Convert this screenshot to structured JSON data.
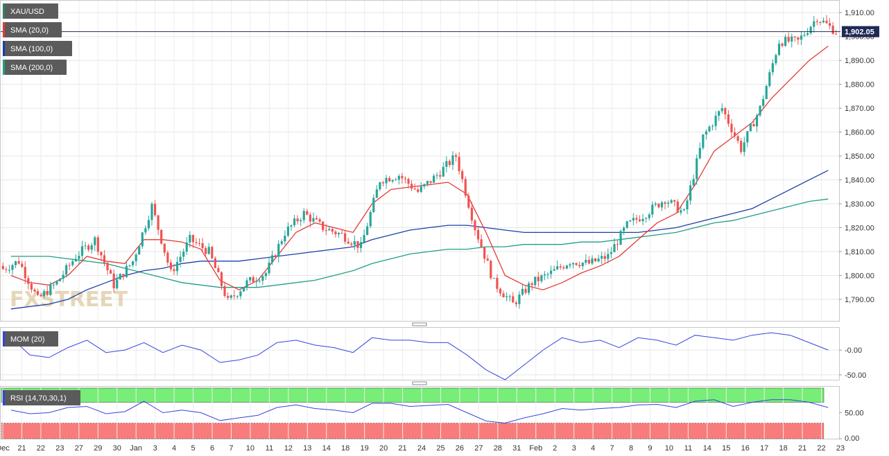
{
  "symbol": "XAU/USD",
  "watermark": "FXSTREET",
  "indicators": [
    {
      "label": "SMA (20,0)",
      "color": "#e53935"
    },
    {
      "label": "SMA (100,0)",
      "color": "#1a3fa8"
    },
    {
      "label": "SMA (200,0)",
      "color": "#1e9e86"
    }
  ],
  "colors": {
    "up": "#26a69a",
    "down": "#ef5350",
    "momentum": "#3344dd",
    "rsi": "#3344dd",
    "rsi_overbought_zone": "#77ee77",
    "rsi_oversold_zone": "#f97c7c",
    "last_price_line": "#1f2a55"
  },
  "last_price": "1,902.05",
  "chart_data": [
    {
      "type": "candlestick",
      "title": "XAU/USD",
      "y_ticks": [
        "1,790.00",
        "1,800.00",
        "1,810.00",
        "1,820.00",
        "1,830.00",
        "1,840.00",
        "1,850.00",
        "1,860.00",
        "1,870.00",
        "1,880.00",
        "1,890.00",
        "1,900.00",
        "1,910.00"
      ],
      "ylim": [
        1781,
        1915
      ],
      "x_ticks": [
        "Dec",
        "21",
        "22",
        "23",
        "27",
        "29",
        "30",
        "Jan",
        "3",
        "4",
        "5",
        "6",
        "7",
        "10",
        "11",
        "12",
        "13",
        "14",
        "18",
        "19",
        "20",
        "21",
        "24",
        "25",
        "26",
        "27",
        "28",
        "31",
        "Feb",
        "2",
        "3",
        "4",
        "7",
        "8",
        "9",
        "10",
        "11",
        "14",
        "15",
        "16",
        "17",
        "18",
        "21",
        "22",
        "23"
      ],
      "last_price": 1902.05,
      "ohlc_anchors_day_close": [
        {
          "day": "Dec",
          "close": 1806
        },
        {
          "day": "21",
          "close": 1790
        },
        {
          "day": "22",
          "close": 1797
        },
        {
          "day": "23",
          "close": 1808
        },
        {
          "day": "27",
          "close": 1815
        },
        {
          "day": "29",
          "close": 1796
        },
        {
          "day": "30",
          "close": 1806
        },
        {
          "day": "Jan",
          "close": 1829
        },
        {
          "day": "3",
          "close": 1801
        },
        {
          "day": "4",
          "close": 1815
        },
        {
          "day": "5",
          "close": 1810
        },
        {
          "day": "6",
          "close": 1789
        },
        {
          "day": "7",
          "close": 1797
        },
        {
          "day": "10",
          "close": 1801
        },
        {
          "day": "11",
          "close": 1818
        },
        {
          "day": "12",
          "close": 1826
        },
        {
          "day": "13",
          "close": 1820
        },
        {
          "day": "14",
          "close": 1817
        },
        {
          "day": "18",
          "close": 1812
        },
        {
          "day": "19",
          "close": 1840
        },
        {
          "day": "20",
          "close": 1842
        },
        {
          "day": "21",
          "close": 1835
        },
        {
          "day": "24",
          "close": 1842
        },
        {
          "day": "25",
          "close": 1850
        },
        {
          "day": "26",
          "close": 1820
        },
        {
          "day": "27",
          "close": 1797
        },
        {
          "day": "28",
          "close": 1788
        },
        {
          "day": "31",
          "close": 1797
        },
        {
          "day": "Feb",
          "close": 1801
        },
        {
          "day": "2",
          "close": 1806
        },
        {
          "day": "3",
          "close": 1805
        },
        {
          "day": "4",
          "close": 1808
        },
        {
          "day": "7",
          "close": 1821
        },
        {
          "day": "8",
          "close": 1826
        },
        {
          "day": "9",
          "close": 1832
        },
        {
          "day": "10",
          "close": 1826
        },
        {
          "day": "11",
          "close": 1858
        },
        {
          "day": "14",
          "close": 1870
        },
        {
          "day": "15",
          "close": 1853
        },
        {
          "day": "16",
          "close": 1870
        },
        {
          "day": "17",
          "close": 1898
        },
        {
          "day": "18",
          "close": 1898
        },
        {
          "day": "21",
          "close": 1908
        },
        {
          "day": "22",
          "close": 1902
        }
      ],
      "sma20": [
        1800,
        1797,
        1796,
        1800,
        1808,
        1806,
        1805,
        1815,
        1815,
        1814,
        1811,
        1798,
        1794,
        1798,
        1808,
        1818,
        1822,
        1820,
        1818,
        1830,
        1836,
        1837,
        1838,
        1839,
        1834,
        1818,
        1800,
        1796,
        1794,
        1797,
        1801,
        1804,
        1808,
        1815,
        1822,
        1826,
        1838,
        1852,
        1858,
        1864,
        1874,
        1882,
        1890,
        1896
      ],
      "sma100": [
        1786,
        1787,
        1788,
        1790,
        1794,
        1797,
        1800,
        1802,
        1803,
        1805,
        1806,
        1806,
        1806,
        1807,
        1808,
        1809,
        1810,
        1811,
        1812,
        1815,
        1817,
        1819,
        1820,
        1821,
        1821,
        1820,
        1819,
        1818,
        1818,
        1818,
        1818,
        1818,
        1818,
        1818,
        1819,
        1820,
        1822,
        1824,
        1826,
        1828,
        1832,
        1836,
        1840,
        1844
      ],
      "sma200": [
        1808,
        1808,
        1808,
        1807,
        1806,
        1805,
        1803,
        1801,
        1799,
        1797,
        1796,
        1795,
        1795,
        1795,
        1796,
        1797,
        1798,
        1800,
        1802,
        1805,
        1807,
        1809,
        1810,
        1811,
        1811,
        1812,
        1812,
        1813,
        1813,
        1813,
        1814,
        1814,
        1815,
        1816,
        1817,
        1818,
        1820,
        1822,
        1823,
        1825,
        1827,
        1829,
        1831,
        1832
      ]
    },
    {
      "type": "line",
      "title": "MOM (20)",
      "y_ticks": [
        "-0.00",
        "-50.00"
      ],
      "ylim": [
        -60,
        45
      ],
      "values": [
        25,
        -10,
        -15,
        5,
        20,
        -5,
        0,
        15,
        -5,
        10,
        0,
        -25,
        -20,
        -10,
        15,
        20,
        10,
        5,
        -5,
        25,
        20,
        20,
        15,
        15,
        -10,
        -40,
        -60,
        -30,
        0,
        25,
        15,
        20,
        5,
        25,
        20,
        10,
        30,
        25,
        20,
        30,
        35,
        30,
        15,
        0
      ]
    },
    {
      "type": "line",
      "title": "RSI (14,70,30,1)",
      "y_ticks": [
        "50.00",
        "0.00"
      ],
      "ylim": [
        0,
        100
      ],
      "values": [
        55,
        48,
        50,
        60,
        62,
        48,
        52,
        72,
        50,
        55,
        50,
        35,
        40,
        45,
        60,
        65,
        58,
        55,
        50,
        68,
        68,
        62,
        64,
        66,
        50,
        34,
        30,
        40,
        48,
        58,
        55,
        58,
        60,
        65,
        66,
        60,
        72,
        75,
        62,
        70,
        75,
        75,
        70,
        60
      ]
    }
  ]
}
